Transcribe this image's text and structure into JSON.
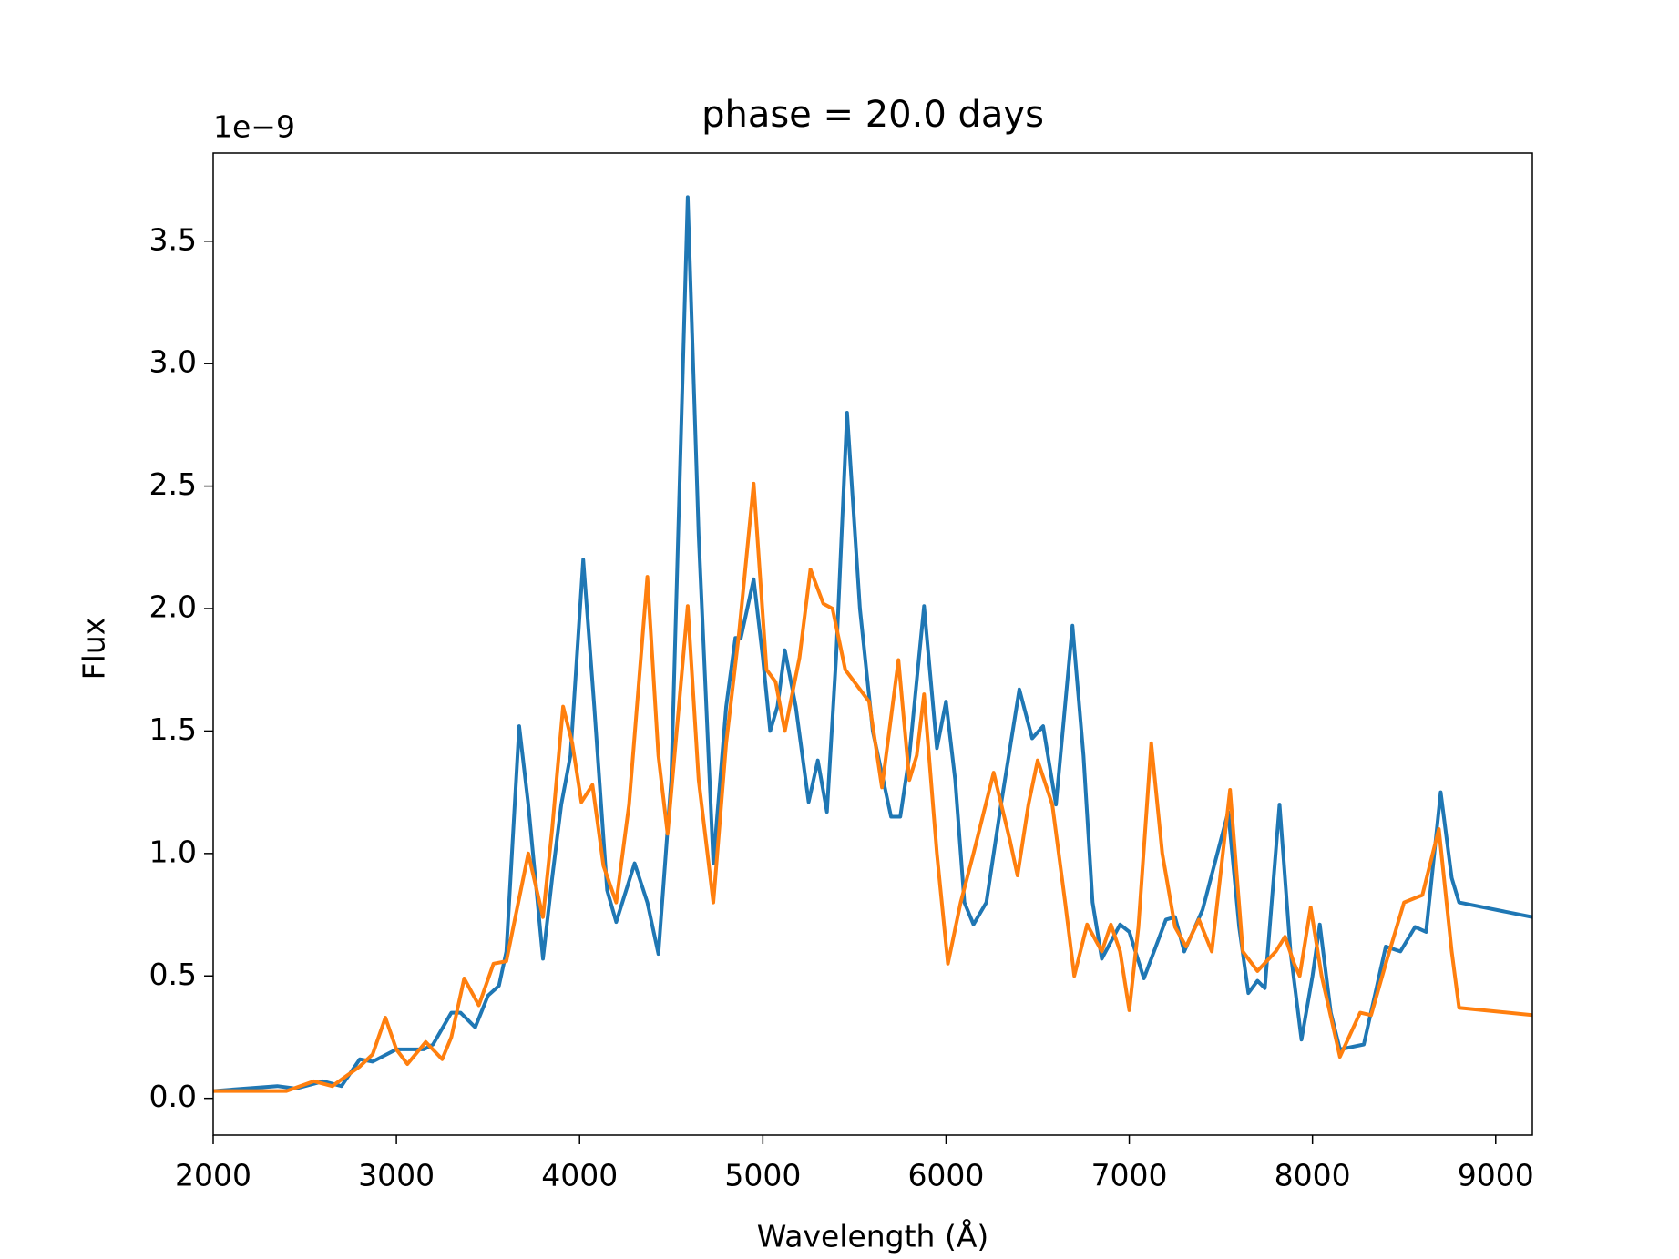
{
  "chart_data": {
    "type": "line",
    "title": "phase = 20.0 days",
    "xlabel": "Wavelength (Å)",
    "ylabel": "Flux",
    "offset_text": "1e−9",
    "xlim": [
      2000,
      9200
    ],
    "xticks": [
      2000,
      3000,
      4000,
      5000,
      6000,
      7000,
      8000,
      9000
    ],
    "ylim": [
      -0.15,
      3.86
    ],
    "yticks": [
      {
        "value": 0,
        "label": "0.0"
      },
      0.5,
      {
        "value": 1,
        "label": "1.0"
      },
      1.5,
      {
        "value": 2,
        "label": "2.0"
      },
      2.5,
      {
        "value": 3,
        "label": "3.0"
      },
      3.5
    ],
    "series": [
      {
        "color": "#1f77b4",
        "x": [
          2000,
          2350,
          2450,
          2600,
          2700,
          2800,
          2870,
          3000,
          3150,
          3200,
          3300,
          3350,
          3430,
          3500,
          3560,
          3600,
          3670,
          3720,
          3800,
          3850,
          3900,
          3950,
          4020,
          4080,
          4150,
          4200,
          4300,
          4370,
          4430,
          4500,
          4590,
          4650,
          4730,
          4800,
          4850,
          4880,
          4950,
          5000,
          5040,
          5080,
          5120,
          5180,
          5250,
          5300,
          5350,
          5400,
          5460,
          5530,
          5600,
          5700,
          5750,
          5800,
          5880,
          5950,
          6000,
          6050,
          6100,
          6150,
          6220,
          6300,
          6400,
          6470,
          6530,
          6600,
          6690,
          6750,
          6800,
          6850,
          6950,
          7000,
          7080,
          7200,
          7250,
          7300,
          7400,
          7540,
          7600,
          7650,
          7700,
          7740,
          7820,
          7880,
          7940,
          8000,
          8040,
          8100,
          8150,
          8280,
          8400,
          8480,
          8560,
          8620,
          8700,
          8760,
          8800,
          9200
        ],
        "values": [
          0.03,
          0.05,
          0.04,
          0.07,
          0.05,
          0.16,
          0.15,
          0.2,
          0.2,
          0.22,
          0.35,
          0.35,
          0.29,
          0.42,
          0.46,
          0.6,
          1.52,
          1.2,
          0.57,
          0.9,
          1.2,
          1.4,
          2.2,
          1.6,
          0.85,
          0.72,
          0.96,
          0.8,
          0.59,
          1.3,
          3.68,
          2.3,
          0.96,
          1.6,
          1.88,
          1.88,
          2.12,
          1.8,
          1.5,
          1.6,
          1.83,
          1.6,
          1.21,
          1.38,
          1.17,
          1.8,
          2.8,
          2.0,
          1.5,
          1.15,
          1.15,
          1.4,
          2.01,
          1.43,
          1.62,
          1.3,
          0.8,
          0.71,
          0.8,
          1.2,
          1.67,
          1.47,
          1.52,
          1.2,
          1.93,
          1.4,
          0.8,
          0.57,
          0.71,
          0.68,
          0.49,
          0.73,
          0.74,
          0.6,
          0.77,
          1.17,
          0.7,
          0.43,
          0.48,
          0.45,
          1.2,
          0.6,
          0.24,
          0.5,
          0.71,
          0.35,
          0.2,
          0.22,
          0.62,
          0.6,
          0.7,
          0.68,
          1.25,
          0.9,
          0.8,
          0.74
        ]
      },
      {
        "color": "#ff7f0e",
        "x": [
          2000,
          2400,
          2550,
          2650,
          2800,
          2870,
          2940,
          3000,
          3060,
          3160,
          3250,
          3300,
          3370,
          3450,
          3530,
          3600,
          3720,
          3800,
          3850,
          3910,
          3960,
          4010,
          4070,
          4130,
          4200,
          4270,
          4370,
          4430,
          4480,
          4530,
          4590,
          4650,
          4730,
          4800,
          4870,
          4950,
          5020,
          5070,
          5120,
          5200,
          5260,
          5330,
          5380,
          5450,
          5500,
          5580,
          5650,
          5740,
          5800,
          5840,
          5880,
          5950,
          6010,
          6080,
          6150,
          6260,
          6350,
          6390,
          6450,
          6500,
          6580,
          6650,
          6700,
          6770,
          6850,
          6900,
          6950,
          7000,
          7050,
          7120,
          7180,
          7250,
          7310,
          7380,
          7450,
          7550,
          7620,
          7700,
          7800,
          7850,
          7900,
          7930,
          7990,
          8050,
          8150,
          8260,
          8320,
          8400,
          8500,
          8600,
          8690,
          8760,
          8800,
          9200
        ],
        "values": [
          0.03,
          0.03,
          0.07,
          0.05,
          0.13,
          0.18,
          0.33,
          0.2,
          0.14,
          0.23,
          0.16,
          0.25,
          0.49,
          0.38,
          0.55,
          0.56,
          1.0,
          0.74,
          1.1,
          1.6,
          1.45,
          1.21,
          1.28,
          0.95,
          0.8,
          1.2,
          2.13,
          1.4,
          1.08,
          1.5,
          2.01,
          1.3,
          0.8,
          1.45,
          1.9,
          2.51,
          1.75,
          1.7,
          1.5,
          1.8,
          2.16,
          2.02,
          2.0,
          1.75,
          1.7,
          1.62,
          1.27,
          1.79,
          1.3,
          1.4,
          1.65,
          1.0,
          0.55,
          0.8,
          1.0,
          1.33,
          1.05,
          0.91,
          1.2,
          1.38,
          1.2,
          0.8,
          0.5,
          0.71,
          0.6,
          0.71,
          0.6,
          0.36,
          0.7,
          1.45,
          1.0,
          0.7,
          0.62,
          0.73,
          0.6,
          1.26,
          0.6,
          0.52,
          0.6,
          0.66,
          0.55,
          0.5,
          0.78,
          0.5,
          0.17,
          0.35,
          0.34,
          0.55,
          0.8,
          0.83,
          1.1,
          0.6,
          0.37,
          0.34
        ]
      }
    ]
  }
}
